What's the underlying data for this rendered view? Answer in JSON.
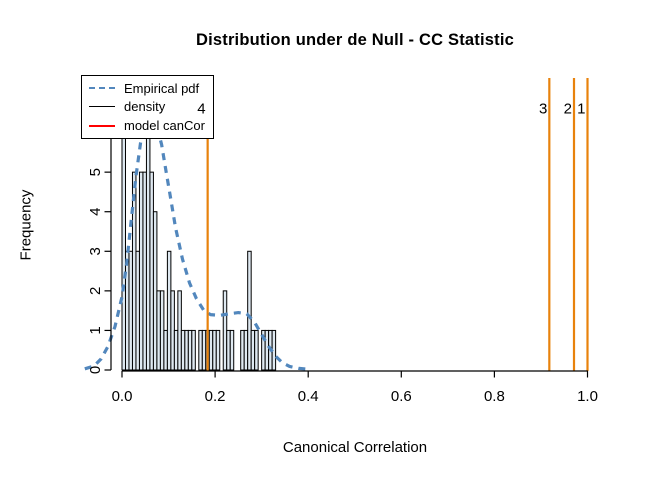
{
  "chart_data": {
    "type": "histogram",
    "title": "Distribution under de Null - CC Statistic",
    "xlabel": "Canonical Correlation",
    "ylabel": "Frequency",
    "xlim": [
      -0.095,
      1.095
    ],
    "ylim": [
      0,
      7.33
    ],
    "grid": false,
    "x_ticks": [
      {
        "v": 0.0,
        "label": "0.0"
      },
      {
        "v": 0.2,
        "label": "0.2"
      },
      {
        "v": 0.4,
        "label": "0.4"
      },
      {
        "v": 0.6,
        "label": "0.6"
      },
      {
        "v": 0.8,
        "label": "0.8"
      },
      {
        "v": 1.0,
        "label": "1.0"
      }
    ],
    "y_ticks": [
      {
        "v": 0,
        "label": "0"
      },
      {
        "v": 1,
        "label": "1"
      },
      {
        "v": 2,
        "label": "2"
      },
      {
        "v": 3,
        "label": "3"
      },
      {
        "v": 4,
        "label": "4"
      },
      {
        "v": 5,
        "label": "5"
      },
      {
        "v": 6,
        "label": "6"
      },
      {
        "v": 7,
        "label": "7"
      }
    ],
    "bins": {
      "start": 0.0,
      "width": 0.0075,
      "counts": [
        7,
        3,
        3,
        5,
        3,
        5,
        5,
        7,
        5,
        4,
        2,
        2,
        1,
        3,
        2,
        1,
        2,
        1,
        1,
        1,
        1,
        0,
        1,
        1,
        1,
        1,
        1,
        1,
        0,
        2,
        1,
        1,
        0,
        0,
        1,
        1,
        3,
        1,
        1,
        0,
        1,
        1,
        1,
        1
      ],
      "fill": "#DFE9F1",
      "border": "#000000"
    },
    "density_curve": {
      "name": "Empirical pdf",
      "color": "#5287BD",
      "line_style": "dashed",
      "line_width": 3.2,
      "points": [
        [
          -0.08,
          0.03
        ],
        [
          -0.06,
          0.1
        ],
        [
          -0.045,
          0.28
        ],
        [
          -0.03,
          0.6
        ],
        [
          -0.015,
          1.1
        ],
        [
          0.0,
          1.85
        ],
        [
          0.01,
          2.7
        ],
        [
          0.02,
          3.8
        ],
        [
          0.03,
          4.9
        ],
        [
          0.04,
          5.75
        ],
        [
          0.05,
          6.25
        ],
        [
          0.06,
          6.45
        ],
        [
          0.072,
          6.3
        ],
        [
          0.085,
          5.7
        ],
        [
          0.095,
          5.0
        ],
        [
          0.105,
          4.3
        ],
        [
          0.115,
          3.6
        ],
        [
          0.13,
          2.8
        ],
        [
          0.145,
          2.2
        ],
        [
          0.16,
          1.8
        ],
        [
          0.175,
          1.52
        ],
        [
          0.19,
          1.4
        ],
        [
          0.21,
          1.38
        ],
        [
          0.23,
          1.42
        ],
        [
          0.25,
          1.45
        ],
        [
          0.268,
          1.42
        ],
        [
          0.285,
          1.2
        ],
        [
          0.3,
          0.9
        ],
        [
          0.315,
          0.6
        ],
        [
          0.33,
          0.35
        ],
        [
          0.345,
          0.18
        ],
        [
          0.36,
          0.09
        ],
        [
          0.38,
          0.04
        ],
        [
          0.4,
          0.02
        ]
      ]
    },
    "vlines": {
      "color": "#E8820C",
      "line_width": 2.2,
      "items": [
        {
          "x": 0.184,
          "label": "4"
        },
        {
          "x": 0.918,
          "label": "3"
        },
        {
          "x": 0.971,
          "label": "2"
        },
        {
          "x": 1.0,
          "label": "1"
        }
      ]
    },
    "legend": {
      "position": "topleft",
      "entries": [
        {
          "label": "Empirical pdf",
          "color": "#5287BD",
          "style": "dashed",
          "weight": 2
        },
        {
          "label": "density",
          "color": "#000000",
          "style": "solid",
          "weight": 1
        },
        {
          "label": "model canCor",
          "color": "#FF0000",
          "style": "solid",
          "weight": 2
        }
      ]
    },
    "axis_color": "#000000"
  }
}
